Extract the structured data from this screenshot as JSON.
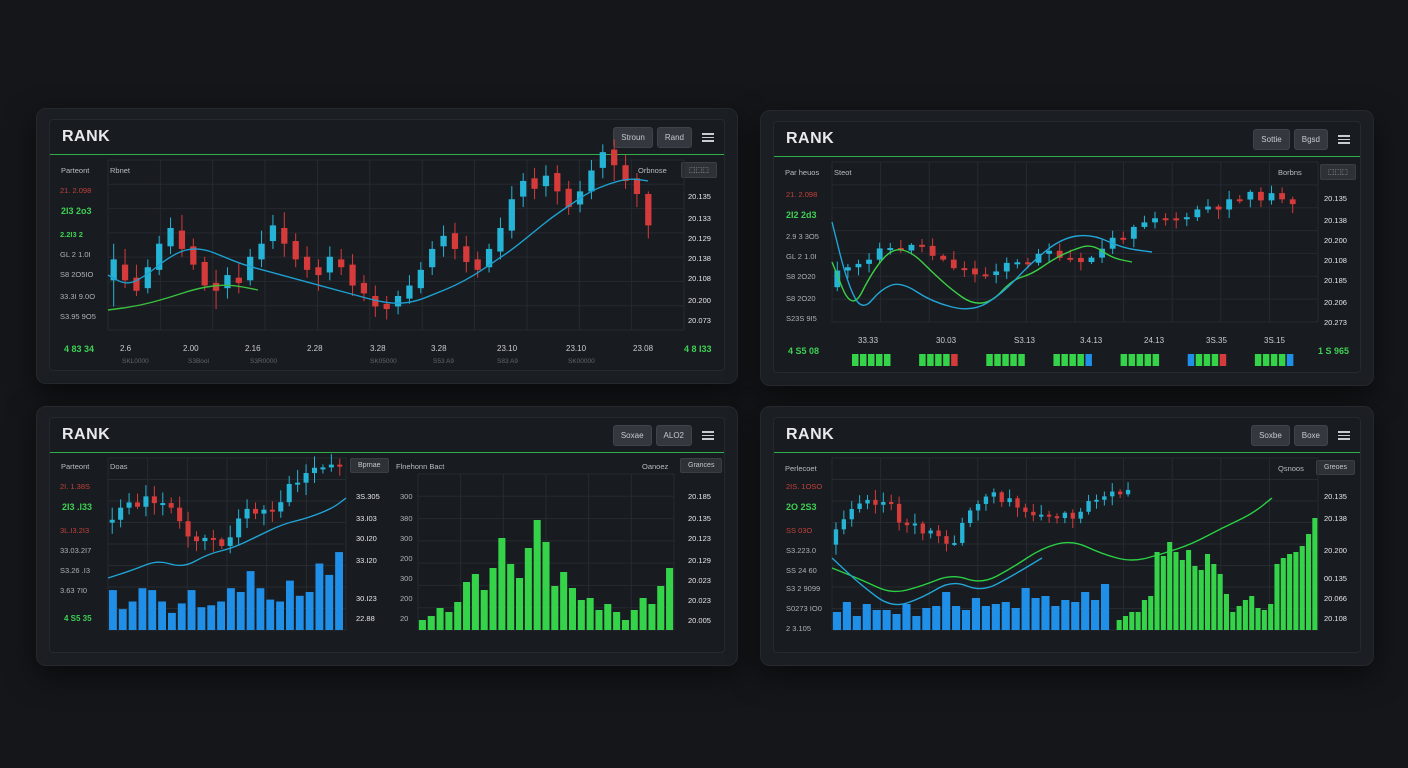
{
  "colors": {
    "up": "#26b4d6",
    "down": "#d63b3b",
    "green": "#34d34a",
    "blue": "#1f8fe8",
    "grid": "#262b31"
  },
  "panels": [
    {
      "title": "RANK",
      "buttons": [
        "Stroun",
        "Rand"
      ],
      "sublabels": [
        "Parteont",
        "Rbnet"
      ],
      "pill_label": "Orbnose",
      "left_y_labels": [
        "21. 2.098",
        "2I3 2o3",
        "2.2I3 2",
        "GL 2 1.0I",
        "S8 2O5IO",
        "33.3I 9.0O",
        "S3.95 9O5"
      ],
      "right_y_labels": [
        "20.135",
        "20.133",
        "20.129",
        "20.138",
        "20.108",
        "20.200",
        "20.073"
      ],
      "footer_left": "4 83 34",
      "footer_right": "4 8 I33",
      "x_labels": [
        "2.6",
        "2.00",
        "2.16",
        "2.28",
        "3.28",
        "3.28",
        "23.10",
        "23.10",
        "23.08"
      ],
      "x_sub": [
        "SKL0000",
        "S3Bool",
        "S3R0000",
        "SK05000",
        "S53 A9",
        "S83 A9",
        "SK00000"
      ]
    },
    {
      "title": "RANK",
      "buttons": [
        "Sottie",
        "Bgsd"
      ],
      "sublabels": [
        "Par heuos",
        "Steot"
      ],
      "pill_label": "Borbns",
      "left_y_labels": [
        "21. 2.098",
        "2I2 2d3",
        "2.9 3 3O5",
        "GL 2 1.0I",
        "S8 2O20",
        "S8 2O20",
        "S23S 9I5"
      ],
      "right_y_labels": [
        "20.135",
        "20.138",
        "20.200",
        "20.108",
        "20.185",
        "20.206",
        "20.273"
      ],
      "footer_left": "4 S5 08",
      "footer_right": "1 S 965",
      "x_labels": [
        "33.33",
        "30.03",
        "S3.13",
        "3.4.13",
        "24.13",
        "3S.35",
        "3S.15"
      ]
    },
    {
      "title": "RANK",
      "buttons": [
        "Soxae",
        "ALO2"
      ],
      "sublabels": [
        "Parteont",
        "Doas"
      ],
      "pill_label": "Bprnae",
      "left_y_labels": [
        "2I. 1.38S",
        "2I3 .l33",
        "3L.I3.2I3",
        "33.03.2I7",
        "S3.26 .I3",
        "3.63 7I0",
        "4 S5 35"
      ],
      "mid_title": "Flnehonn Bact",
      "mid_y_labels_left": [
        "3S.305",
        "33.I03",
        "30.I20",
        "33.I20",
        "30.I23",
        "22.88"
      ],
      "mid_y_labels_right": [
        "300",
        "380",
        "300",
        "200",
        "300",
        "200",
        "20"
      ],
      "right_pill": "Oanoez",
      "right_pill_label": "Grances",
      "right_y_labels": [
        "20.185",
        "20.135",
        "20.123",
        "20.129",
        "20.023",
        "20.023",
        "20.005"
      ]
    },
    {
      "title": "RANK",
      "buttons": [
        "Soxbe",
        "Boxe"
      ],
      "sublabels": [
        "Perlecoet"
      ],
      "pill_label": "Greoes",
      "mid_label": "Qsnoos",
      "left_y_labels": [
        "2IS. 1OSO",
        "2O 2S3",
        "SS 03O",
        "S3.223.0",
        "SS 24 60",
        "S3 2 9099",
        "S0273 IO0",
        "2 3.105"
      ],
      "right_y_labels": [
        "20.135",
        "20.138",
        "20.200",
        "00.135",
        "20.066",
        "20.108"
      ]
    }
  ],
  "chart_data": [
    {
      "type": "candlestick",
      "candles": [
        [
          224,
          232,
          214,
          238
        ],
        [
          230,
          224,
          221,
          236
        ],
        [
          225,
          220,
          218,
          230
        ],
        [
          221,
          229,
          219,
          232
        ],
        [
          228,
          238,
          226,
          241
        ],
        [
          237,
          244,
          234,
          248
        ],
        [
          243,
          236,
          233,
          249
        ],
        [
          237,
          230,
          228,
          240
        ],
        [
          231,
          222,
          220,
          233
        ],
        [
          223,
          220,
          213,
          228
        ],
        [
          221,
          226,
          217,
          229
        ],
        [
          225,
          223,
          219,
          231
        ],
        [
          224,
          233,
          222,
          236
        ],
        [
          232,
          238,
          229,
          243
        ],
        [
          239,
          245,
          236,
          249
        ],
        [
          244,
          238,
          233,
          250
        ],
        [
          239,
          232,
          229,
          242
        ],
        [
          233,
          228,
          225,
          237
        ],
        [
          229,
          226,
          220,
          232
        ],
        [
          227,
          233,
          224,
          237
        ],
        [
          232,
          229,
          226,
          236
        ],
        [
          230,
          222,
          218,
          234
        ],
        [
          223,
          219,
          216,
          226
        ],
        [
          218,
          214,
          210,
          222
        ],
        [
          215,
          213,
          209,
          218
        ],
        [
          214,
          218,
          211,
          220
        ],
        [
          217,
          222,
          215,
          226
        ],
        [
          221,
          228,
          219,
          231
        ],
        [
          229,
          236,
          226,
          239
        ],
        [
          237,
          241,
          233,
          245
        ],
        [
          242,
          236,
          232,
          246
        ],
        [
          237,
          231,
          227,
          241
        ],
        [
          232,
          228,
          225,
          235
        ],
        [
          229,
          236,
          227,
          238
        ],
        [
          235,
          244,
          232,
          248
        ],
        [
          243,
          255,
          240,
          260
        ],
        [
          256,
          262,
          252,
          265
        ],
        [
          263,
          259,
          255,
          267
        ],
        [
          260,
          264,
          256,
          268
        ],
        [
          265,
          258,
          253,
          268
        ],
        [
          259,
          252,
          249,
          262
        ],
        [
          253,
          258,
          250,
          262
        ],
        [
          258,
          266,
          255,
          270
        ],
        [
          267,
          273,
          263,
          276
        ],
        [
          274,
          268,
          262,
          278
        ],
        [
          268,
          262,
          259,
          272
        ],
        [
          263,
          257,
          252,
          265
        ],
        [
          257,
          245,
          240,
          258
        ]
      ],
      "trend": [
        226,
        222,
        226,
        232,
        236,
        236,
        233,
        230,
        228,
        226,
        224,
        222,
        220,
        218,
        216,
        215,
        216,
        219,
        222,
        226,
        231,
        236,
        242,
        248,
        253,
        258,
        261,
        263,
        262
      ]
    },
    {
      "type": "candlestick",
      "volume_strip": [
        3,
        5,
        4,
        2,
        5,
        5,
        3,
        5,
        2,
        5,
        5,
        4,
        5,
        3,
        5,
        3,
        5,
        5,
        4,
        2,
        5,
        3,
        4,
        3
      ]
    },
    {
      "type": "candlestick+bar",
      "blue_volume": [
        42,
        22,
        30,
        44,
        42,
        30,
        18,
        28,
        42,
        24,
        26,
        30,
        44,
        40,
        62,
        44,
        32,
        30,
        52,
        36,
        40,
        70,
        58,
        82
      ],
      "green_histogram": [
        10,
        14,
        22,
        18,
        28,
        48,
        56,
        40,
        62,
        92,
        66,
        52,
        82,
        110,
        88,
        44,
        58,
        42,
        30,
        32,
        20,
        26,
        18,
        10,
        20,
        32,
        26,
        44,
        62
      ],
      "green_colors": [
        "#34d34a"
      ]
    },
    {
      "type": "candlestick+bar",
      "blue_volume": [
        18,
        28,
        14,
        26,
        20,
        20,
        16,
        26,
        14,
        22,
        24,
        38,
        24,
        20,
        32,
        24,
        26,
        28,
        22,
        42,
        32,
        34,
        24,
        30,
        28,
        38,
        30,
        46,
        34,
        30,
        42,
        34,
        38,
        32,
        24,
        42,
        36,
        48,
        30,
        22
      ],
      "green_histogram": [
        10,
        14,
        18,
        18,
        30,
        34,
        78,
        74,
        88,
        78,
        70,
        80,
        64,
        60,
        76,
        66,
        56,
        36,
        18,
        24,
        30,
        34,
        22,
        20,
        26,
        66,
        72,
        76,
        78,
        84,
        96,
        112
      ]
    }
  ]
}
